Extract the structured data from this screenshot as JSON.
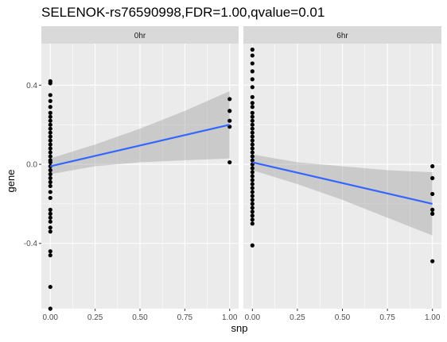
{
  "chart_data": {
    "type": "scatter",
    "title": "SELENOK-rs76590998,FDR=1.00,qvalue=0.01",
    "xlabel": "snp",
    "ylabel": "gene",
    "xlim": [
      -0.05,
      1.05
    ],
    "ylim": [
      -0.73,
      0.61
    ],
    "x_ticks": [
      0,
      0.25,
      0.5,
      0.75,
      1
    ],
    "x_tick_labels": [
      "0.00",
      "0.25",
      "0.50",
      "0.75",
      "1.00"
    ],
    "y_ticks": [
      -0.4,
      0,
      0.4
    ],
    "y_tick_labels": [
      "-0.4",
      "0.0",
      "0.4"
    ],
    "grid": true,
    "colors": {
      "panel_bg": "#ebebeb",
      "strip_bg": "#d9d9d9",
      "grid": "#ffffff",
      "point": "#000000",
      "fit_line": "#3366ff",
      "ribbon": "#999999"
    },
    "panels": [
      {
        "facet": "0hr",
        "points": [
          {
            "x": 0,
            "y": 0.42
          },
          {
            "x": 0,
            "y": 0.41
          },
          {
            "x": 0,
            "y": 0.35
          },
          {
            "x": 0,
            "y": 0.32
          },
          {
            "x": 0,
            "y": 0.29
          },
          {
            "x": 0,
            "y": 0.26
          },
          {
            "x": 0,
            "y": 0.24
          },
          {
            "x": 0,
            "y": 0.22
          },
          {
            "x": 0,
            "y": 0.2
          },
          {
            "x": 0,
            "y": 0.18
          },
          {
            "x": 0,
            "y": 0.16
          },
          {
            "x": 0,
            "y": 0.14
          },
          {
            "x": 0,
            "y": 0.12
          },
          {
            "x": 0,
            "y": 0.1
          },
          {
            "x": 0,
            "y": 0.08
          },
          {
            "x": 0,
            "y": 0.06
          },
          {
            "x": 0,
            "y": 0.04
          },
          {
            "x": 0,
            "y": 0.02
          },
          {
            "x": 0,
            "y": 0.01
          },
          {
            "x": 0,
            "y": -0.01
          },
          {
            "x": 0,
            "y": -0.03
          },
          {
            "x": 0,
            "y": -0.05
          },
          {
            "x": 0,
            "y": -0.07
          },
          {
            "x": 0,
            "y": -0.09
          },
          {
            "x": 0,
            "y": -0.11
          },
          {
            "x": 0,
            "y": -0.14
          },
          {
            "x": 0,
            "y": -0.17
          },
          {
            "x": 0,
            "y": -0.23
          },
          {
            "x": 0,
            "y": -0.25
          },
          {
            "x": 0,
            "y": -0.27
          },
          {
            "x": 0,
            "y": -0.29
          },
          {
            "x": 0,
            "y": -0.32
          },
          {
            "x": 0,
            "y": -0.34
          },
          {
            "x": 0,
            "y": -0.44
          },
          {
            "x": 0,
            "y": -0.46
          },
          {
            "x": 0,
            "y": -0.62
          },
          {
            "x": 0,
            "y": -0.73
          },
          {
            "x": 1,
            "y": 0.33
          },
          {
            "x": 1,
            "y": 0.27
          },
          {
            "x": 1,
            "y": 0.22
          },
          {
            "x": 1,
            "y": 0.19
          },
          {
            "x": 1,
            "y": 0.01
          }
        ],
        "fit": {
          "x": [
            0,
            1
          ],
          "y": [
            -0.01,
            0.2
          ]
        },
        "ribbon": {
          "x": [
            0,
            0.25,
            0.5,
            0.75,
            1
          ],
          "lower": [
            -0.05,
            -0.01,
            0.01,
            0.02,
            0.03
          ],
          "upper": [
            0.03,
            0.1,
            0.18,
            0.27,
            0.37
          ]
        }
      },
      {
        "facet": "6hr",
        "points": [
          {
            "x": 0,
            "y": 0.58
          },
          {
            "x": 0,
            "y": 0.55
          },
          {
            "x": 0,
            "y": 0.51
          },
          {
            "x": 0,
            "y": 0.47
          },
          {
            "x": 0,
            "y": 0.43
          },
          {
            "x": 0,
            "y": 0.39
          },
          {
            "x": 0,
            "y": 0.34
          },
          {
            "x": 0,
            "y": 0.31
          },
          {
            "x": 0,
            "y": 0.29
          },
          {
            "x": 0,
            "y": 0.26
          },
          {
            "x": 0,
            "y": 0.24
          },
          {
            "x": 0,
            "y": 0.22
          },
          {
            "x": 0,
            "y": 0.2
          },
          {
            "x": 0,
            "y": 0.18
          },
          {
            "x": 0,
            "y": 0.16
          },
          {
            "x": 0,
            "y": 0.14
          },
          {
            "x": 0,
            "y": 0.12
          },
          {
            "x": 0,
            "y": 0.1
          },
          {
            "x": 0,
            "y": 0.08
          },
          {
            "x": 0,
            "y": 0.06
          },
          {
            "x": 0,
            "y": 0.04
          },
          {
            "x": 0,
            "y": 0.02
          },
          {
            "x": 0,
            "y": 0
          },
          {
            "x": 0,
            "y": -0.02
          },
          {
            "x": 0,
            "y": -0.04
          },
          {
            "x": 0,
            "y": -0.06
          },
          {
            "x": 0,
            "y": -0.08
          },
          {
            "x": 0,
            "y": -0.1
          },
          {
            "x": 0,
            "y": -0.12
          },
          {
            "x": 0,
            "y": -0.14
          },
          {
            "x": 0,
            "y": -0.16
          },
          {
            "x": 0,
            "y": -0.18
          },
          {
            "x": 0,
            "y": -0.2
          },
          {
            "x": 0,
            "y": -0.22
          },
          {
            "x": 0,
            "y": -0.24
          },
          {
            "x": 0,
            "y": -0.26
          },
          {
            "x": 0,
            "y": -0.28
          },
          {
            "x": 0,
            "y": -0.3
          },
          {
            "x": 0,
            "y": -0.41
          },
          {
            "x": 1,
            "y": -0.01
          },
          {
            "x": 1,
            "y": -0.07
          },
          {
            "x": 1,
            "y": -0.15
          },
          {
            "x": 1,
            "y": -0.23
          },
          {
            "x": 1,
            "y": -0.25
          },
          {
            "x": 1,
            "y": -0.49
          }
        ],
        "fit": {
          "x": [
            0,
            1
          ],
          "y": [
            0.01,
            -0.2
          ]
        },
        "ribbon": {
          "x": [
            0,
            0.25,
            0.5,
            0.75,
            1
          ],
          "lower": [
            -0.03,
            -0.1,
            -0.18,
            -0.27,
            -0.36
          ],
          "upper": [
            0.05,
            0.01,
            -0.01,
            -0.03,
            -0.04
          ]
        }
      }
    ]
  }
}
